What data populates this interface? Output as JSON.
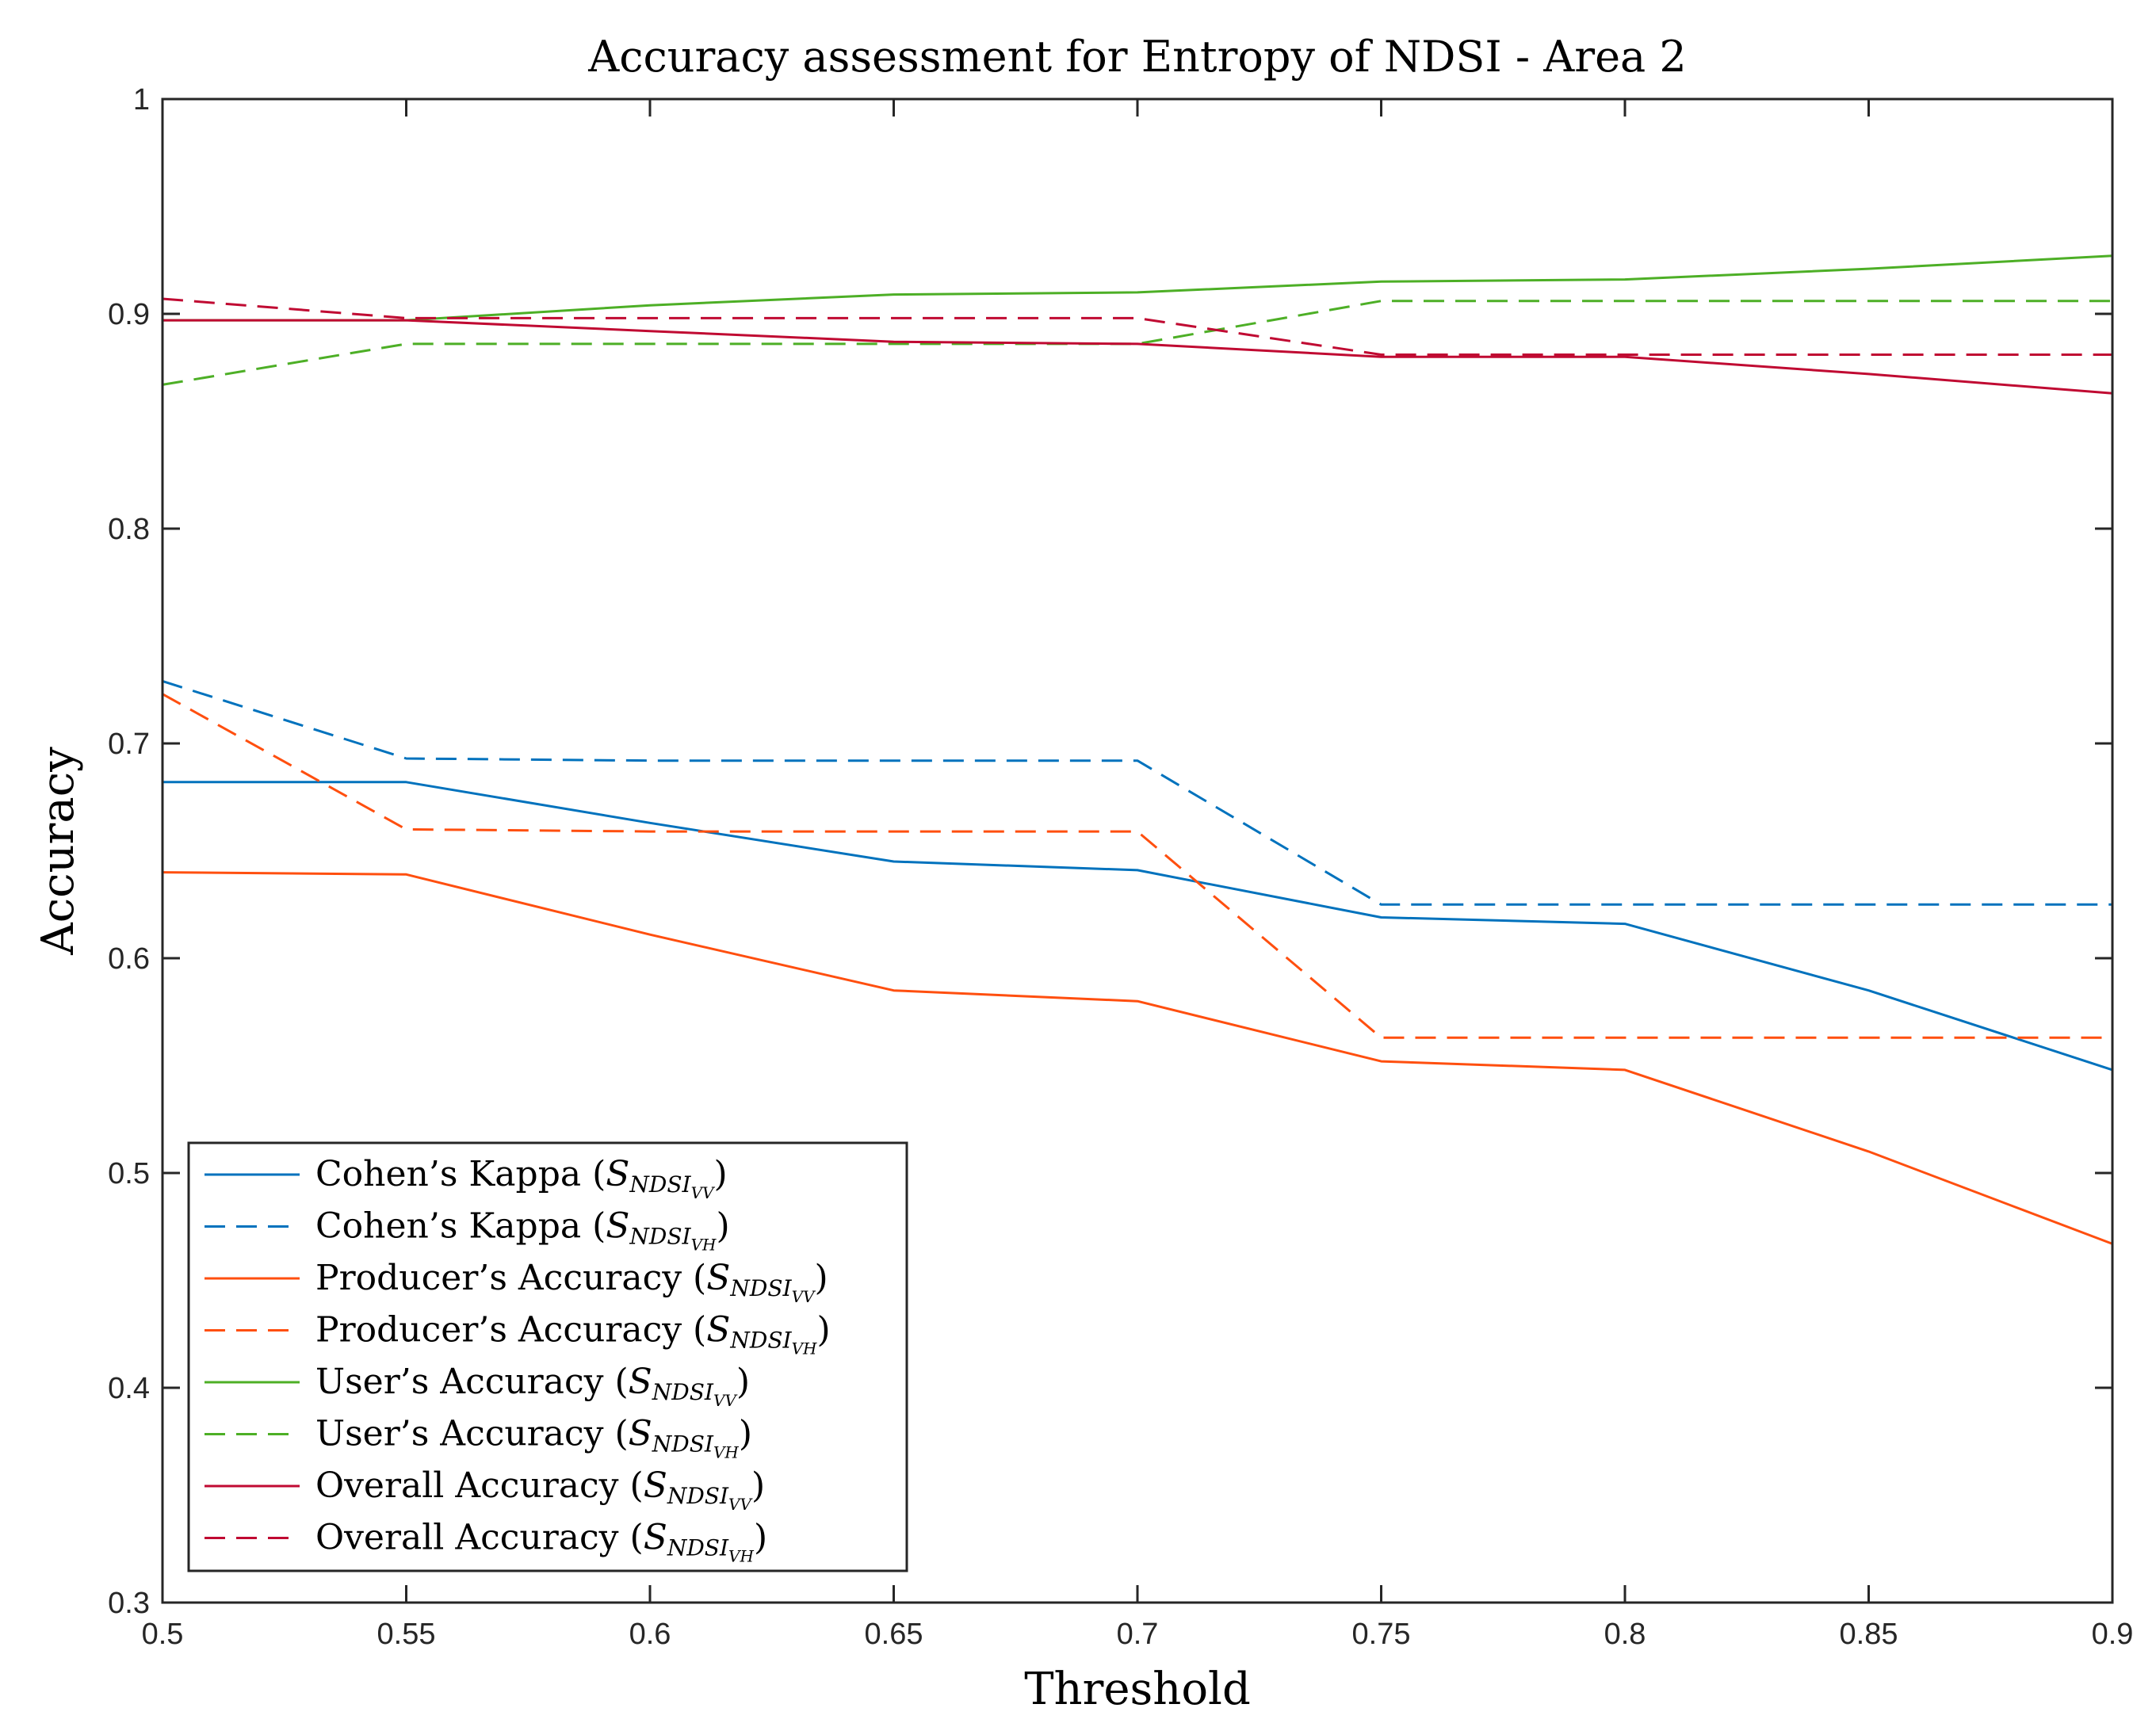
{
  "chart_data": {
    "type": "line",
    "title": "Accuracy assessment for Entropy of NDSI - Area 2",
    "xlabel": "Threshold",
    "ylabel": "Accuracy",
    "xlim": [
      0.5,
      0.9
    ],
    "ylim": [
      0.3,
      1.0
    ],
    "xticks": [
      0.5,
      0.55,
      0.6,
      0.65,
      0.7,
      0.75,
      0.8,
      0.85,
      0.9
    ],
    "xtick_labels": [
      "0.5",
      "0.55",
      "0.6",
      "0.65",
      "0.7",
      "0.75",
      "0.8",
      "0.85",
      "0.9"
    ],
    "yticks": [
      0.3,
      0.4,
      0.5,
      0.6,
      0.7,
      0.8,
      0.9,
      1.0
    ],
    "ytick_labels": [
      "0.3",
      "0.4",
      "0.5",
      "0.6",
      "0.7",
      "0.8",
      "0.9",
      "1"
    ],
    "grid": false,
    "legend_position": "bottom-left",
    "x": [
      0.5,
      0.55,
      0.6,
      0.65,
      0.7,
      0.75,
      0.8,
      0.85,
      0.9
    ],
    "series": [
      {
        "name": "Cohen's Kappa (S_NDSI_VV)",
        "label_main": "Cohen’s Kappa (",
        "sym": "S",
        "sub": "NDSI",
        "subsub": "VV",
        "close": ")",
        "color": "#0072BD",
        "dash": "solid",
        "values": [
          0.682,
          0.682,
          0.663,
          0.645,
          0.641,
          0.619,
          0.616,
          0.585,
          0.548
        ]
      },
      {
        "name": "Cohen's Kappa (S_NDSI_VH)",
        "label_main": "Cohen’s Kappa (",
        "sym": "S",
        "sub": "NDSI",
        "subsub": "VH",
        "close": ")",
        "color": "#0072BD",
        "dash": "dashed",
        "values": [
          0.729,
          0.693,
          0.692,
          0.692,
          0.692,
          0.625,
          0.625,
          0.625,
          0.625
        ]
      },
      {
        "name": "Producer's Accuracy (S_NDSI_VV)",
        "label_main": "Producer’s Accuracy (",
        "sym": "S",
        "sub": "NDSI",
        "subsub": "VV",
        "close": ")",
        "color": "#FF4F0F",
        "dash": "solid",
        "values": [
          0.64,
          0.639,
          0.611,
          0.585,
          0.58,
          0.552,
          0.548,
          0.51,
          0.467
        ]
      },
      {
        "name": "Producer's Accuracy (S_NDSI_VH)",
        "label_main": "Producer’s Accuracy (",
        "sym": "S",
        "sub": "NDSI",
        "subsub": "VH",
        "close": ")",
        "color": "#FF4F0F",
        "dash": "dashed",
        "values": [
          0.723,
          0.66,
          0.659,
          0.659,
          0.659,
          0.563,
          0.563,
          0.563,
          0.563
        ]
      },
      {
        "name": "User's Accuracy (S_NDSI_VV)",
        "label_main": "User’s Accuracy (",
        "sym": "S",
        "sub": "NDSI",
        "subsub": "VV",
        "close": ")",
        "color": "#4DAF26",
        "dash": "solid",
        "values": [
          0.897,
          0.897,
          0.904,
          0.909,
          0.91,
          0.915,
          0.916,
          0.921,
          0.927
        ]
      },
      {
        "name": "User's Accuracy (S_NDSI_VH)",
        "label_main": "User’s Accuracy (",
        "sym": "S",
        "sub": "NDSI",
        "subsub": "VH",
        "close": ")",
        "color": "#4DAF26",
        "dash": "dashed",
        "values": [
          0.867,
          0.886,
          0.886,
          0.886,
          0.886,
          0.906,
          0.906,
          0.906,
          0.906
        ]
      },
      {
        "name": "Overall Accuracy (S_NDSI_VV)",
        "label_main": "Overall Accuracy (",
        "sym": "S",
        "sub": "NDSI",
        "subsub": "VV",
        "close": ")",
        "color": "#C00A32",
        "dash": "solid",
        "values": [
          0.897,
          0.897,
          0.892,
          0.887,
          0.886,
          0.88,
          0.88,
          0.872,
          0.863
        ]
      },
      {
        "name": "Overall Accuracy (S_NDSI_VH)",
        "label_main": "Overall Accuracy (",
        "sym": "S",
        "sub": "NDSI",
        "subsub": "VH",
        "close": ")",
        "color": "#C00A32",
        "dash": "dashed",
        "values": [
          0.907,
          0.898,
          0.898,
          0.898,
          0.898,
          0.881,
          0.881,
          0.881,
          0.881
        ]
      }
    ]
  }
}
